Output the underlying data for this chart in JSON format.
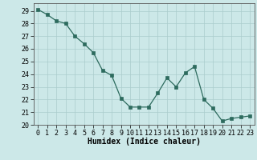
{
  "x": [
    0,
    1,
    2,
    3,
    4,
    5,
    6,
    7,
    8,
    9,
    10,
    11,
    12,
    13,
    14,
    15,
    16,
    17,
    18,
    19,
    20,
    21,
    22,
    23
  ],
  "y": [
    29.1,
    28.7,
    28.2,
    28.0,
    27.0,
    26.4,
    25.7,
    24.3,
    23.9,
    22.1,
    21.4,
    21.4,
    21.4,
    22.5,
    23.7,
    23.0,
    24.1,
    24.6,
    22.0,
    21.3,
    20.3,
    20.5,
    20.6,
    20.7
  ],
  "line_color": "#2d6b5e",
  "marker_color": "#2d6b5e",
  "bg_color": "#cce8e8",
  "grid_color": "#aacccc",
  "xlabel": "Humidex (Indice chaleur)",
  "ylim": [
    20,
    29.6
  ],
  "xlim": [
    -0.5,
    23.5
  ],
  "yticks": [
    20,
    21,
    22,
    23,
    24,
    25,
    26,
    27,
    28,
    29
  ],
  "xticks": [
    0,
    1,
    2,
    3,
    4,
    5,
    6,
    7,
    8,
    9,
    10,
    11,
    12,
    13,
    14,
    15,
    16,
    17,
    18,
    19,
    20,
    21,
    22,
    23
  ],
  "xlabel_fontsize": 7,
  "tick_fontsize": 6
}
